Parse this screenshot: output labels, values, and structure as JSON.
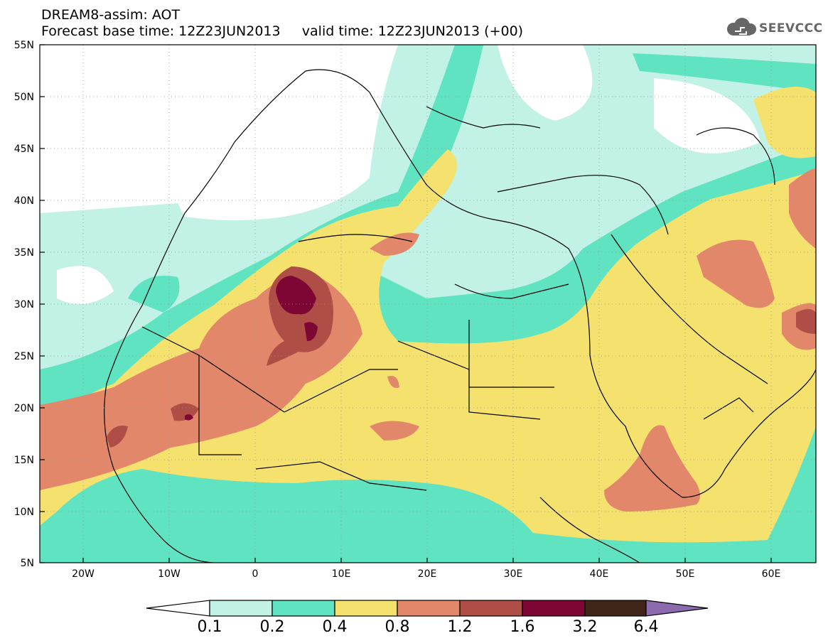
{
  "header": {
    "line1": "DREAM8-assim: AOT",
    "line2": "Forecast base time: 12Z23JUN2013     valid time: 12Z23JUN2013 (+00)"
  },
  "logo": {
    "text": "SEEVCCC",
    "icon": "cloud-icon"
  },
  "map": {
    "lat_labels": [
      "55N",
      "50N",
      "45N",
      "40N",
      "35N",
      "30N",
      "25N",
      "20N",
      "15N",
      "10N",
      "5N"
    ],
    "lon_labels": [
      "20W",
      "10W",
      "0",
      "10E",
      "20E",
      "30E",
      "40E",
      "50E",
      "60E"
    ],
    "region": "North Africa / Mediterranean / Middle East"
  },
  "colorbar": {
    "labels": [
      "0.1",
      "0.2",
      "0.4",
      "0.8",
      "1.2",
      "1.6",
      "3.2",
      "6.4"
    ],
    "colors": [
      "#ffffff",
      "#c2f1e6",
      "#5fe3c0",
      "#f5e16d",
      "#e3876a",
      "#ae4e46",
      "#7e0634",
      "#3f2619",
      "#8c6aad"
    ]
  }
}
